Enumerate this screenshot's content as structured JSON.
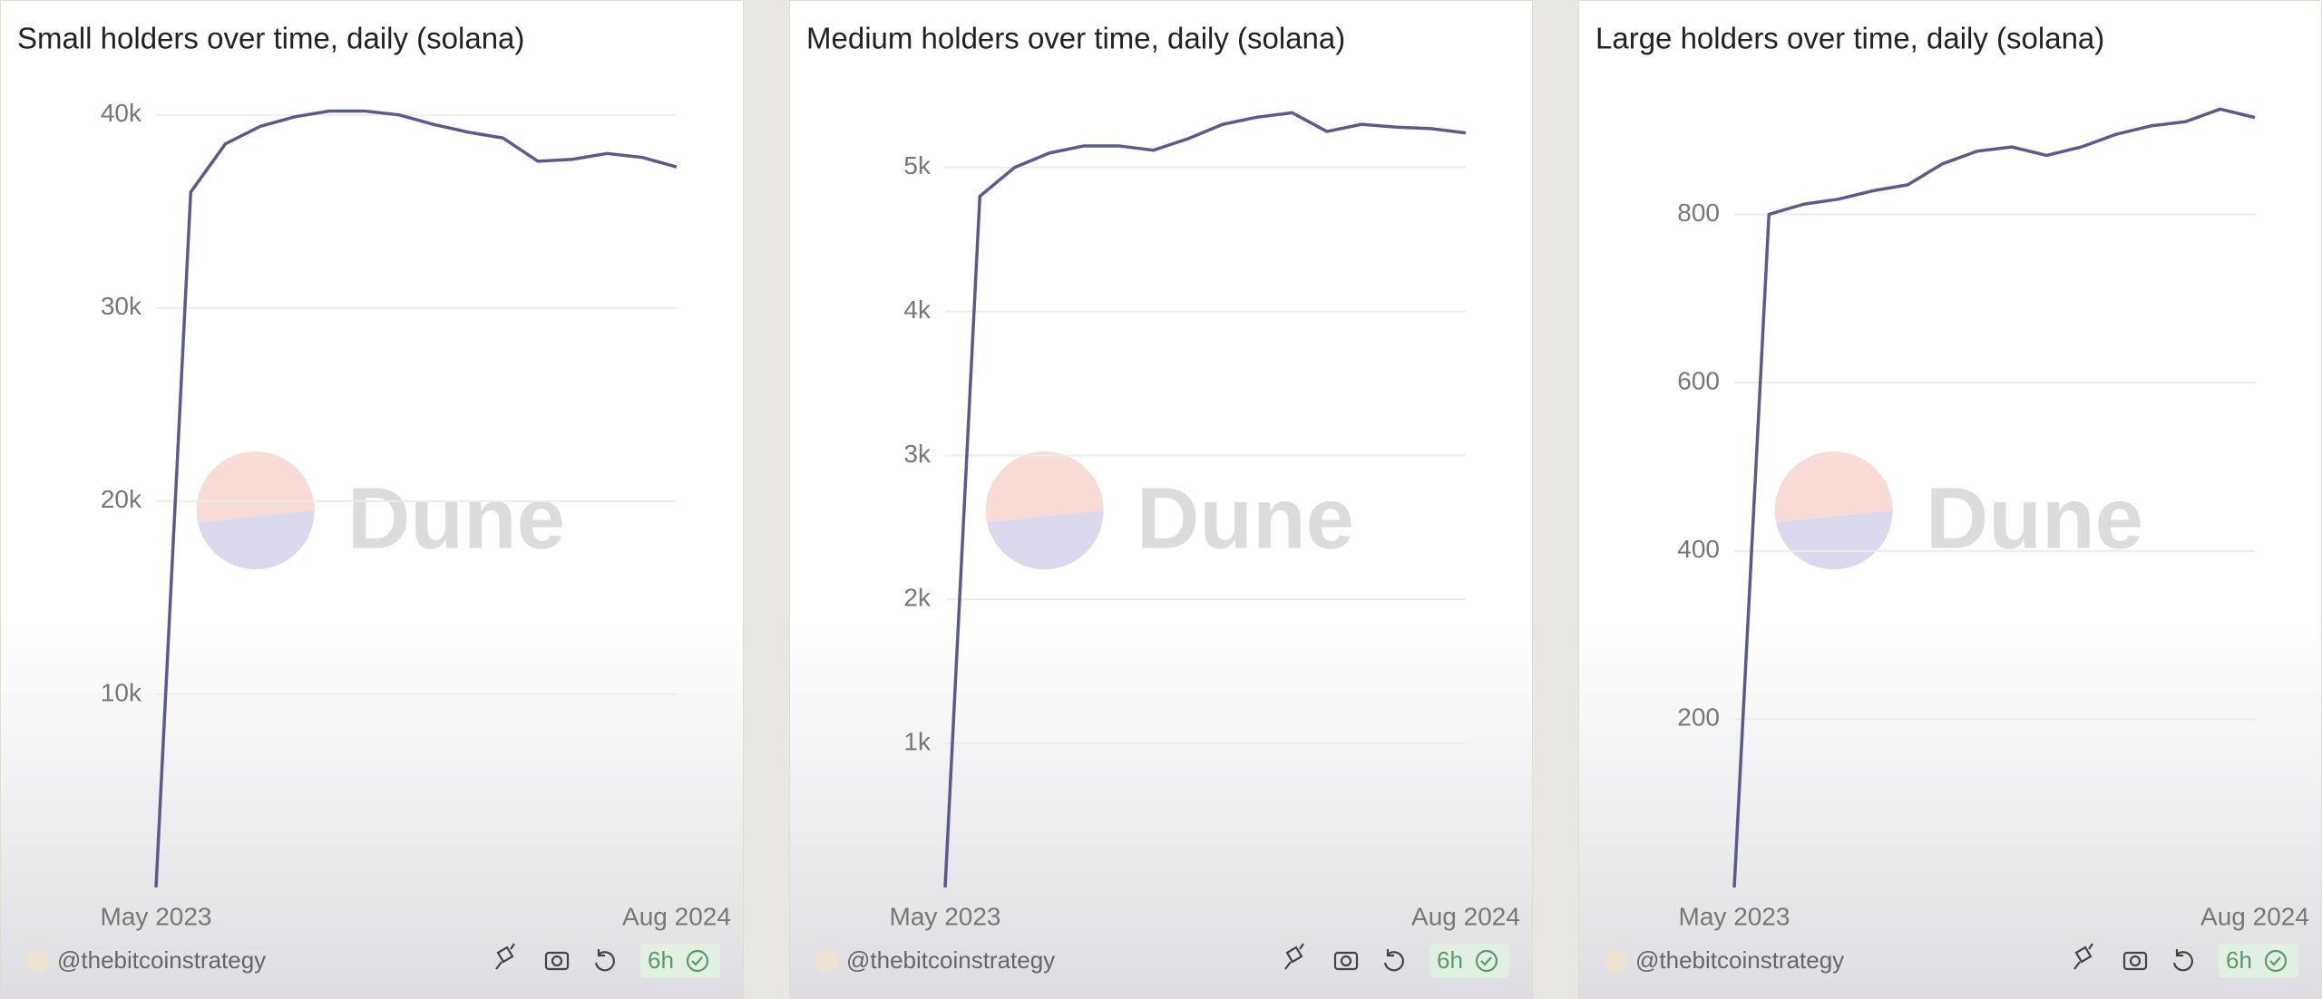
{
  "chart_data": [
    {
      "type": "line",
      "title": "Small holders over time, daily (solana)",
      "color": "#5b5a8c",
      "x": [
        "2023-05",
        "2023-06",
        "2023-07",
        "2023-08",
        "2023-09",
        "2023-10",
        "2023-11",
        "2023-12",
        "2024-01",
        "2024-02",
        "2024-03",
        "2024-04",
        "2024-05",
        "2024-06",
        "2024-07",
        "2024-08"
      ],
      "values": [
        0,
        36000,
        38500,
        39400,
        39900,
        40200,
        40200,
        40000,
        39500,
        39100,
        38800,
        37600,
        37700,
        38000,
        37800,
        37300
      ],
      "xlim": [
        "2023-05",
        "2024-08"
      ],
      "xticks": [
        {
          "value": "2023-05",
          "label": "May 2023"
        },
        {
          "value": "2024-08",
          "label": "Aug 2024"
        }
      ],
      "ylim": [
        0,
        41300
      ],
      "yticks": [
        {
          "value": 10000,
          "label": "10k"
        },
        {
          "value": 20000,
          "label": "20k"
        },
        {
          "value": 30000,
          "label": "30k"
        },
        {
          "value": 40000,
          "label": "40k"
        }
      ],
      "grid": true,
      "watermark": "Dune",
      "handle": "@thebitcoinstrategy",
      "refresh": "6h"
    },
    {
      "type": "line",
      "title": "Medium holders over time, daily (solana)",
      "color": "#5b5a8c",
      "x": [
        "2023-05",
        "2023-06",
        "2023-07",
        "2023-08",
        "2023-09",
        "2023-10",
        "2023-11",
        "2023-12",
        "2024-01",
        "2024-02",
        "2024-03",
        "2024-04",
        "2024-05",
        "2024-06",
        "2024-07",
        "2024-08"
      ],
      "values": [
        0,
        4800,
        5000,
        5100,
        5150,
        5150,
        5120,
        5200,
        5300,
        5350,
        5380,
        5250,
        5300,
        5280,
        5270,
        5240
      ],
      "xlim": [
        "2023-05",
        "2024-08"
      ],
      "xticks": [
        {
          "value": "2023-05",
          "label": "May 2023"
        },
        {
          "value": "2024-08",
          "label": "Aug 2024"
        }
      ],
      "ylim": [
        0,
        5540
      ],
      "yticks": [
        {
          "value": 1000,
          "label": "1k"
        },
        {
          "value": 2000,
          "label": "2k"
        },
        {
          "value": 3000,
          "label": "3k"
        },
        {
          "value": 4000,
          "label": "4k"
        },
        {
          "value": 5000,
          "label": "5k"
        }
      ],
      "grid": true,
      "watermark": "Dune",
      "handle": "@thebitcoinstrategy",
      "refresh": "6h"
    },
    {
      "type": "line",
      "title": "Large holders over time, daily (solana)",
      "color": "#5b5a8c",
      "x": [
        "2023-05",
        "2023-06",
        "2023-07",
        "2023-08",
        "2023-09",
        "2023-10",
        "2023-11",
        "2023-12",
        "2024-01",
        "2024-02",
        "2024-03",
        "2024-04",
        "2024-05",
        "2024-06",
        "2024-07",
        "2024-08"
      ],
      "values": [
        0,
        800,
        812,
        818,
        828,
        835,
        860,
        875,
        880,
        870,
        880,
        895,
        905,
        910,
        925,
        915
      ],
      "xlim": [
        "2023-05",
        "2024-08"
      ],
      "xticks": [
        {
          "value": "2023-05",
          "label": "May 2023"
        },
        {
          "value": "2024-08",
          "label": "Aug 2024"
        }
      ],
      "ylim": [
        0,
        948
      ],
      "yticks": [
        200,
        400,
        600,
        800
      ],
      "grid": true,
      "watermark": "Dune",
      "handle": "@thebitcoinstrategy",
      "refresh": "6h"
    }
  ]
}
